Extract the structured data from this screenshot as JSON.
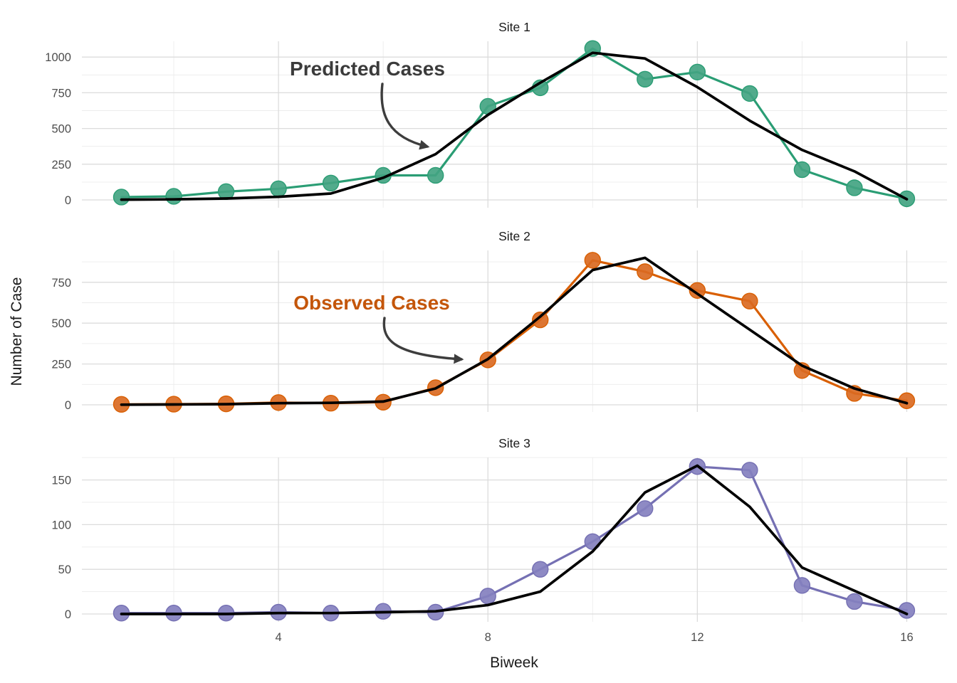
{
  "axes": {
    "x_label": "Biweek",
    "y_label": "Number of Case",
    "x_ticks": [
      4,
      8,
      12,
      16
    ],
    "x_range": [
      1,
      16
    ]
  },
  "annotations": {
    "predicted": {
      "text": "Predicted Cases",
      "color": "#3b3b3b"
    },
    "observed": {
      "text": "Observed Cases",
      "color": "#c4560a"
    }
  },
  "style": {
    "background": "#ffffff",
    "grid_major": "#dcdcdc",
    "grid_minor": "#ececec",
    "tick_text": "#4d4d4d",
    "title_text": "#1a1a1a",
    "arrow": "#3d3d3d",
    "predicted_line": "#000000",
    "site1_color": "#2a9d74",
    "site2_color": "#d95f02",
    "site3_color": "#7570b3"
  },
  "chart_data": [
    {
      "type": "line",
      "title": "Site 1",
      "xlabel": "Biweek",
      "ylabel": "Number of Case",
      "x": [
        1,
        2,
        3,
        4,
        5,
        6,
        7,
        8,
        9,
        10,
        11,
        12,
        13,
        14,
        15,
        16
      ],
      "y_ticks": [
        0,
        250,
        500,
        750,
        1000
      ],
      "ylim": [
        -53,
        1113
      ],
      "grid": true,
      "legend": "none",
      "series": [
        {
          "name": "Observed Cases",
          "role": "observed",
          "color": "#2a9d74",
          "point_color": "#43a482",
          "values": [
            20,
            25,
            58,
            78,
            118,
            172,
            172,
            655,
            785,
            1060,
            845,
            895,
            745,
            212,
            85,
            8
          ]
        },
        {
          "name": "Predicted Cases",
          "role": "predicted",
          "color": "#000000",
          "values": [
            2,
            4,
            10,
            22,
            45,
            155,
            320,
            595,
            820,
            1030,
            990,
            790,
            555,
            350,
            200,
            5
          ]
        }
      ]
    },
    {
      "type": "line",
      "title": "Site 2",
      "xlabel": "Biweek",
      "ylabel": "Number of Case",
      "x": [
        1,
        2,
        3,
        4,
        5,
        6,
        7,
        8,
        9,
        10,
        11,
        12,
        13,
        14,
        15,
        16
      ],
      "y_ticks": [
        0,
        250,
        500,
        750
      ],
      "ylim": [
        -45,
        945
      ],
      "grid": true,
      "legend": "none",
      "series": [
        {
          "name": "Observed Cases",
          "role": "observed",
          "color": "#d95f02",
          "point_color": "#da6a22",
          "values": [
            3,
            4,
            6,
            14,
            10,
            16,
            105,
            275,
            520,
            885,
            815,
            700,
            635,
            210,
            70,
            25
          ]
        },
        {
          "name": "Predicted Cases",
          "role": "predicted",
          "color": "#000000",
          "values": [
            1,
            2,
            4,
            10,
            12,
            20,
            100,
            280,
            540,
            825,
            900,
            680,
            460,
            240,
            100,
            10
          ]
        }
      ]
    },
    {
      "type": "line",
      "title": "Site 3",
      "xlabel": "Biweek",
      "ylabel": "Number of Case",
      "x": [
        1,
        2,
        3,
        4,
        5,
        6,
        7,
        8,
        9,
        10,
        11,
        12,
        13,
        14,
        15,
        16
      ],
      "y_ticks": [
        0,
        50,
        100,
        150
      ],
      "ylim": [
        -8,
        175
      ],
      "grid": true,
      "legend": "none",
      "series": [
        {
          "name": "Observed Cases",
          "role": "observed",
          "color": "#7570b3",
          "point_color": "#8480bf",
          "values": [
            1,
            1,
            1,
            2,
            1,
            3,
            2,
            20,
            50,
            81,
            118,
            165,
            161,
            32,
            14,
            4
          ]
        },
        {
          "name": "Predicted Cases",
          "role": "predicted",
          "color": "#000000",
          "values": [
            0,
            0,
            0,
            1,
            1,
            2,
            3,
            10,
            25,
            70,
            136,
            166,
            120,
            52,
            26,
            0
          ]
        }
      ]
    }
  ]
}
